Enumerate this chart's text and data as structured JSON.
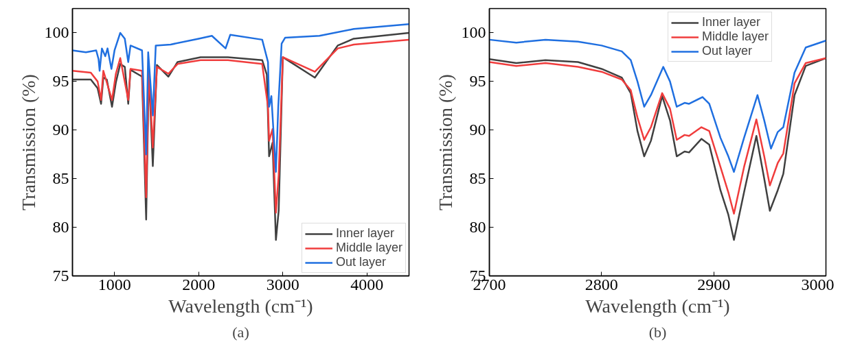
{
  "chart_data": [
    {
      "type": "line",
      "title": "(a)",
      "xlabel": "Wavelength (cm⁻¹)",
      "ylabel": "Transmission (%)",
      "xlim": [
        500,
        4500
      ],
      "ylim": [
        75,
        102.5
      ],
      "xticks": [
        1000,
        2000,
        3000,
        4000
      ],
      "yticks": [
        75,
        80,
        85,
        90,
        95,
        100
      ],
      "grid": false,
      "legend": "bottom right",
      "line_style": "solid",
      "marker": "none",
      "series": [
        {
          "name": "Inner layer",
          "color": "#404040",
          "x": [
            500,
            718,
            799,
            840,
            867,
            908,
            970,
            1016,
            1068,
            1122,
            1163,
            1190,
            1327,
            1376,
            1408,
            1455,
            1504,
            1640,
            1749,
            2022,
            2348,
            2755,
            2810,
            2837,
            2878,
            2918,
            2951,
            3000,
            3381,
            3653,
            3843,
            4496
          ],
          "values": [
            95.2,
            95.2,
            94.3,
            92.7,
            95.4,
            95.2,
            92.4,
            94.9,
            96.8,
            96.5,
            92.7,
            96.2,
            95.5,
            80.8,
            96.1,
            86.3,
            96.7,
            95.5,
            97.0,
            97.5,
            97.5,
            97.2,
            95.7,
            87.3,
            88.7,
            78.7,
            81.7,
            97.5,
            95.4,
            98.7,
            99.4,
            100.0
          ]
        },
        {
          "name": "Middle layer",
          "color": "#f03c3c",
          "x": [
            500,
            718,
            799,
            840,
            867,
            970,
            1016,
            1068,
            1163,
            1190,
            1327,
            1376,
            1408,
            1455,
            1504,
            1640,
            1749,
            2022,
            2348,
            2755,
            2824,
            2837,
            2878,
            2918,
            2951,
            3000,
            3381,
            3653,
            3843,
            4496
          ],
          "values": [
            96.1,
            95.9,
            95.0,
            93.1,
            96.1,
            93.1,
            95.8,
            97.4,
            93.1,
            96.3,
            96.1,
            83.1,
            96.3,
            88.2,
            96.5,
            95.8,
            96.8,
            97.2,
            97.2,
            96.8,
            92.4,
            88.9,
            90.1,
            81.5,
            85.4,
            97.5,
            96.0,
            98.4,
            98.8,
            99.3
          ]
        },
        {
          "name": "Out layer",
          "color": "#1f6fe0",
          "x": [
            500,
            660,
            782,
            810,
            823,
            850,
            890,
            917,
            963,
            1000,
            1068,
            1122,
            1163,
            1190,
            1327,
            1376,
            1400,
            1455,
            1490,
            1667,
            2000,
            2157,
            2320,
            2375,
            2755,
            2824,
            2837,
            2864,
            2918,
            2946,
            2986,
            3027,
            3435,
            3843,
            4496
          ],
          "values": [
            98.2,
            98.0,
            98.2,
            97.3,
            96.1,
            98.4,
            97.6,
            98.4,
            96.3,
            98.2,
            100.0,
            99.4,
            97.0,
            98.7,
            98.2,
            87.5,
            98.0,
            91.5,
            98.7,
            98.8,
            99.4,
            99.7,
            98.4,
            99.8,
            99.3,
            97.0,
            92.4,
            93.5,
            85.7,
            92.4,
            98.9,
            99.5,
            99.7,
            100.4,
            100.9
          ]
        }
      ]
    },
    {
      "type": "line",
      "title": "(b)",
      "xlabel": "Wavelength (cm⁻¹)",
      "ylabel": "Transmission (%)",
      "xlim": [
        2700,
        3000
      ],
      "ylim": [
        75,
        102.5
      ],
      "xticks": [
        2700,
        2800,
        2900,
        3000
      ],
      "yticks": [
        75,
        80,
        85,
        90,
        95,
        100
      ],
      "grid": false,
      "legend": "top right",
      "line_style": "solid",
      "marker": "none",
      "series": [
        {
          "name": "Inner layer",
          "color": "#404040",
          "x": [
            2700,
            2724,
            2750,
            2779,
            2800,
            2818,
            2826,
            2832,
            2838,
            2844,
            2854,
            2861,
            2867,
            2874,
            2878,
            2889,
            2896,
            2906,
            2913,
            2918,
            2927,
            2938,
            2945,
            2950,
            2957,
            2962,
            2972,
            2982,
            3000
          ],
          "values": [
            97.3,
            96.9,
            97.2,
            97.0,
            96.3,
            95.4,
            93.8,
            89.9,
            87.3,
            88.9,
            93.5,
            91.0,
            87.3,
            87.8,
            87.7,
            89.1,
            88.5,
            83.8,
            81.3,
            78.7,
            83.6,
            89.4,
            85.0,
            81.7,
            83.8,
            85.5,
            93.6,
            96.6,
            97.4
          ]
        },
        {
          "name": "Middle layer",
          "color": "#f03c3c",
          "x": [
            2700,
            2724,
            2750,
            2779,
            2800,
            2818,
            2826,
            2832,
            2838,
            2844,
            2854,
            2861,
            2867,
            2874,
            2878,
            2889,
            2896,
            2906,
            2913,
            2918,
            2927,
            2938,
            2945,
            2950,
            2957,
            2962,
            2972,
            2982,
            3000
          ],
          "values": [
            97.0,
            96.6,
            96.9,
            96.5,
            96.0,
            95.2,
            94.1,
            91.3,
            89.0,
            90.3,
            93.8,
            92.2,
            89.0,
            89.5,
            89.4,
            90.3,
            89.9,
            86.2,
            83.6,
            81.4,
            86.2,
            91.1,
            87.3,
            84.3,
            86.6,
            87.6,
            94.8,
            96.9,
            97.4
          ]
        },
        {
          "name": "Out layer",
          "color": "#1f6fe0",
          "x": [
            2700,
            2724,
            2750,
            2779,
            2800,
            2818,
            2826,
            2832,
            2838,
            2844,
            2855,
            2861,
            2867,
            2874,
            2878,
            2890,
            2896,
            2906,
            2913,
            2918,
            2927,
            2939,
            2945,
            2951,
            2957,
            2962,
            2972,
            2982,
            3000
          ],
          "values": [
            99.3,
            99.0,
            99.3,
            99.1,
            98.7,
            98.1,
            97.2,
            95.0,
            92.4,
            93.6,
            96.5,
            95.0,
            92.4,
            92.8,
            92.7,
            93.4,
            92.7,
            89.2,
            87.3,
            85.7,
            89.2,
            93.6,
            91.0,
            88.1,
            89.8,
            90.3,
            95.9,
            98.5,
            99.2
          ]
        }
      ]
    }
  ]
}
